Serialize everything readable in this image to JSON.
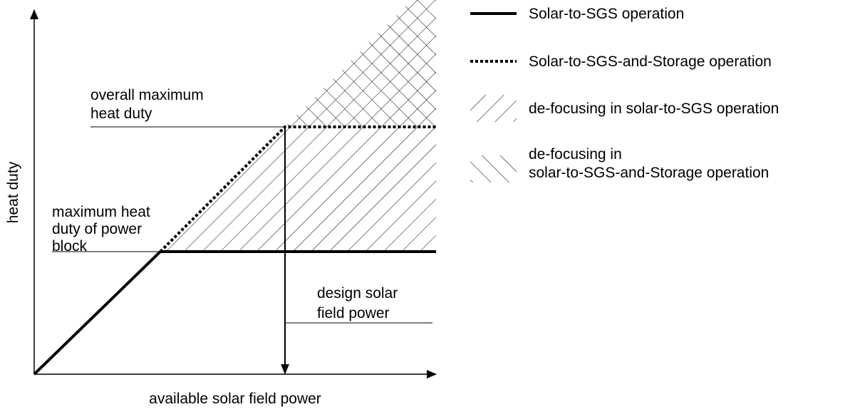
{
  "axes": {
    "x_label": "available solar field power",
    "y_label": "heat duty"
  },
  "annotations": {
    "overall_maximum": [
      "overall maximum",
      "heat duty"
    ],
    "power_block_maximum": [
      "maximum heat",
      "duty of power",
      "block"
    ],
    "design_power": [
      "design solar",
      "field power"
    ]
  },
  "legend": [
    {
      "lines": [
        "Solar-to-SGS operation"
      ]
    },
    {
      "lines": [
        "Solar-to-SGS-and-Storage operation"
      ]
    },
    {
      "lines": [
        "de-focusing in solar-to-SGS operation"
      ]
    },
    {
      "lines": [
        "de-focusing in",
        "solar-to-SGS-and-Storage operation"
      ]
    }
  ]
}
